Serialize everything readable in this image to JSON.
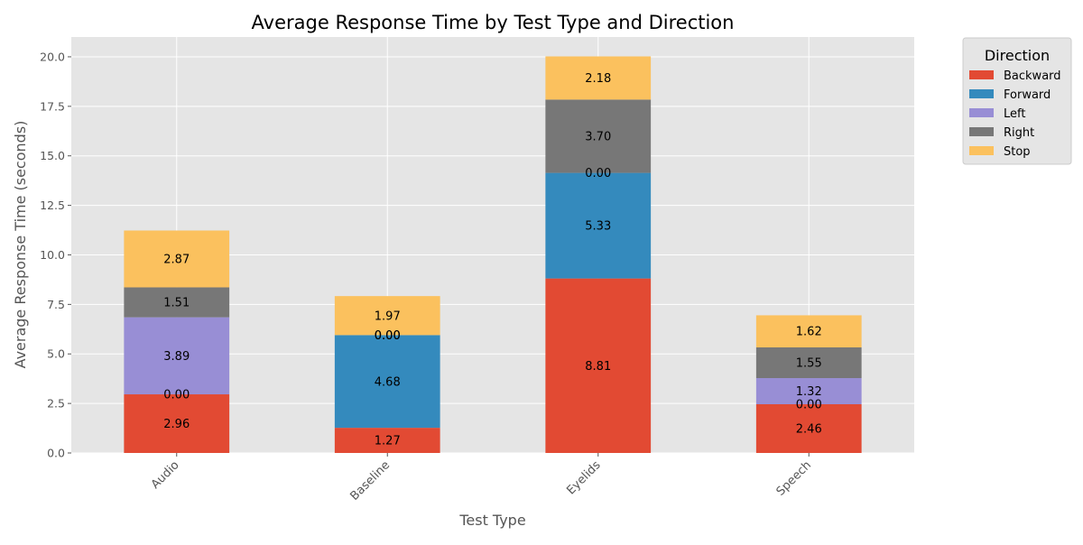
{
  "chart_data": {
    "type": "bar",
    "stacked": true,
    "title": "Average Response Time by Test Type and Direction",
    "xlabel": "Test Type",
    "ylabel": "Average Response Time (seconds)",
    "categories": [
      "Audio",
      "Baseline",
      "Eyelids",
      "Speech"
    ],
    "ylim": [
      0,
      21
    ],
    "yticks": [
      "0.0",
      "2.5",
      "5.0",
      "7.5",
      "10.0",
      "12.5",
      "15.0",
      "17.5",
      "20.0"
    ],
    "grid": true,
    "legend": {
      "title": "Direction",
      "placement": "outside-top-right"
    },
    "series": [
      {
        "name": "Backward",
        "color": "#E24A33",
        "values": [
          2.96,
          1.27,
          8.81,
          2.46
        ],
        "labels": [
          "2.96",
          "1.27",
          "8.81",
          "2.46"
        ]
      },
      {
        "name": "Forward",
        "color": "#348ABD",
        "values": [
          0,
          4.68,
          5.33,
          0
        ],
        "labels": [
          "0.00",
          "4.68",
          "5.33",
          "0.00"
        ]
      },
      {
        "name": "Left",
        "color": "#988ED5",
        "values": [
          3.89,
          0,
          0,
          1.32
        ],
        "labels": [
          "3.89",
          "0.00",
          "0.00",
          "1.32"
        ]
      },
      {
        "name": "Right",
        "color": "#777777",
        "values": [
          1.51,
          0,
          3.7,
          1.55
        ],
        "labels": [
          "1.51",
          "0.00",
          "3.70",
          "1.55"
        ]
      },
      {
        "name": "Stop",
        "color": "#FBC15E",
        "values": [
          2.87,
          1.97,
          2.18,
          1.62
        ],
        "labels": [
          "2.87",
          "1.97",
          "2.18",
          "1.62"
        ]
      }
    ]
  }
}
